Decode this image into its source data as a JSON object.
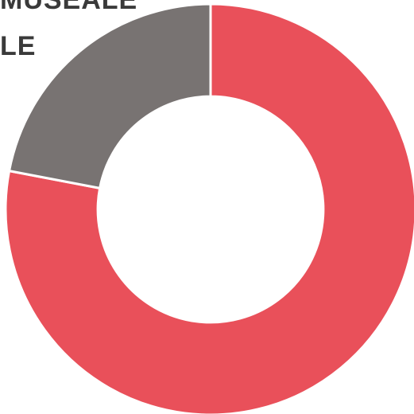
{
  "chart_data": {
    "type": "pie",
    "variant": "donut",
    "label_lines": [
      "MUSEALE",
      "LE"
    ],
    "slices": [
      {
        "value": 78,
        "color": "#e9505a"
      },
      {
        "value": 22,
        "color": "#787372"
      }
    ],
    "hole_ratio": 0.55,
    "legend": "none"
  }
}
